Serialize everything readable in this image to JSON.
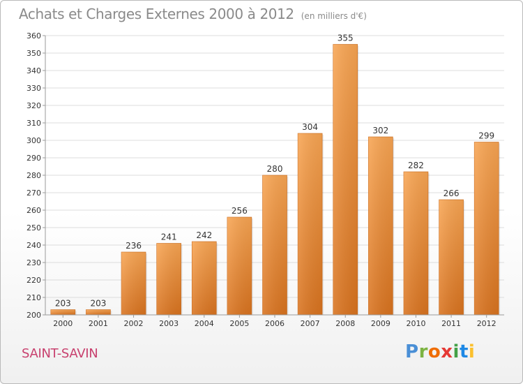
{
  "title": "Achats et Charges Externes 2000 à 2012",
  "unit": "(en milliers d'€)",
  "commune": "SAINT-SAVIN",
  "brand": {
    "text": "Proxiti",
    "letter_colors": [
      "#4a8fd6",
      "#7cb342",
      "#ef6c00",
      "#e53935",
      "#43a047",
      "#1e88e5",
      "#fbc02d"
    ]
  },
  "colors": {
    "bar_top": "#f8a553",
    "bar_bottom": "#d9731f",
    "grid": "#dcdcdc",
    "axis_text": "#333333"
  },
  "chart_data": {
    "type": "bar",
    "title": "Achats et Charges Externes 2000 à 2012",
    "categories": [
      "2000",
      "2001",
      "2002",
      "2003",
      "2004",
      "2005",
      "2006",
      "2007",
      "2008",
      "2009",
      "2010",
      "2011",
      "2012"
    ],
    "values": [
      203,
      203,
      236,
      241,
      242,
      256,
      280,
      304,
      355,
      302,
      282,
      266,
      299
    ],
    "ylim": [
      200,
      360
    ],
    "yticks": [
      200,
      210,
      220,
      230,
      240,
      250,
      260,
      270,
      280,
      290,
      300,
      310,
      320,
      330,
      340,
      350,
      360
    ],
    "grid": true,
    "data_labels": true
  }
}
